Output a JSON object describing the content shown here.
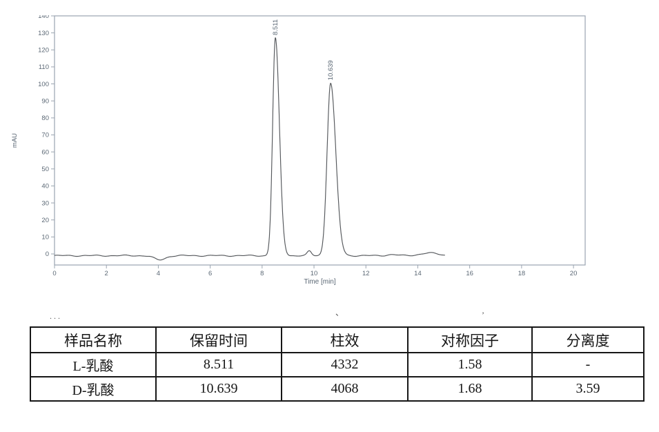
{
  "chart_data": {
    "type": "line",
    "title": "",
    "xlabel": "Time [min]",
    "ylabel": "mAU",
    "xlim": [
      0,
      20.45
    ],
    "ylim": [
      -6.5,
      140
    ],
    "x_tick_step": 2,
    "x_tick_max": 20,
    "y_tick_step": 10,
    "y_tick_max": 140,
    "grid": false,
    "legend": null,
    "trace_color": "#54575b",
    "axis_color": "#9aa4b0",
    "label_color": "#5a6774",
    "trace_end_min": 15.05,
    "baseline_mAU": -1.0,
    "noise_amplitude_mAU": 0.25,
    "peaks": [
      {
        "label": "8.511",
        "rt_min": 8.511,
        "height_mAU": 128,
        "sigma_left_min": 0.105,
        "sigma_right_min": 0.155
      },
      {
        "label": "10.639",
        "rt_min": 10.639,
        "height_mAU": 101.5,
        "sigma_left_min": 0.135,
        "sigma_right_min": 0.2
      }
    ],
    "baseline_features": [
      {
        "center_min": 4.05,
        "height_mAU": -2.5,
        "sigma_min": 0.22
      },
      {
        "center_min": 9.82,
        "height_mAU": 2.6,
        "sigma_min": 0.08
      },
      {
        "center_min": 13.0,
        "height_mAU": 0.6,
        "sigma_min": 0.2
      },
      {
        "center_min": 14.45,
        "height_mAU": 1.5,
        "sigma_min": 0.35
      }
    ]
  },
  "table": {
    "headers": [
      "样品名称",
      "保留时间",
      "柱效",
      "对称因子",
      "分离度"
    ],
    "rows": [
      [
        "L-乳酸",
        "8.511",
        "4332",
        "1.58",
        "-"
      ],
      [
        "D-乳酸",
        "10.639",
        "4068",
        "1.68",
        "3.59"
      ]
    ]
  },
  "crop_artifacts": [
    {
      "text": ". . ."
    },
    {
      "text": "、"
    },
    {
      "text": "’"
    }
  ]
}
